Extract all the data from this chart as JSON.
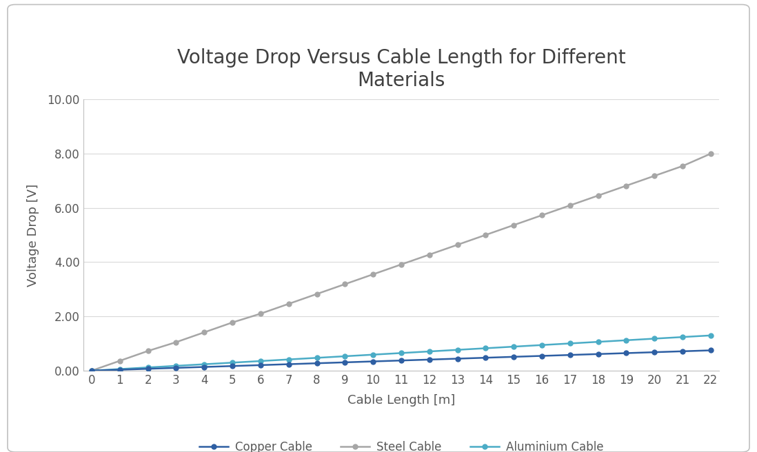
{
  "title": "Voltage Drop Versus Cable Length for Different\nMaterials",
  "xlabel": "Cable Length [m]",
  "ylabel": "Voltage Drop [V]",
  "x": [
    0,
    1,
    2,
    3,
    4,
    5,
    6,
    7,
    8,
    9,
    10,
    11,
    12,
    13,
    14,
    15,
    16,
    17,
    18,
    19,
    20,
    21,
    22
  ],
  "copper": [
    0.0,
    0.034,
    0.068,
    0.102,
    0.136,
    0.17,
    0.204,
    0.238,
    0.272,
    0.306,
    0.34,
    0.374,
    0.408,
    0.442,
    0.476,
    0.51,
    0.544,
    0.578,
    0.612,
    0.646,
    0.68,
    0.714,
    0.748
  ],
  "steel": [
    0.0,
    0.363,
    0.726,
    1.05,
    1.413,
    1.776,
    2.1,
    2.463,
    2.826,
    3.189,
    3.552,
    3.915,
    4.278,
    4.641,
    5.004,
    5.367,
    5.73,
    6.093,
    6.456,
    6.819,
    7.182,
    7.545,
    8.0
  ],
  "aluminium": [
    0.0,
    0.059,
    0.118,
    0.177,
    0.236,
    0.295,
    0.354,
    0.413,
    0.472,
    0.531,
    0.59,
    0.649,
    0.708,
    0.767,
    0.826,
    0.885,
    0.944,
    1.003,
    1.062,
    1.121,
    1.18,
    1.239,
    1.298
  ],
  "copper_color": "#2e5fa3",
  "steel_color": "#a6a6a6",
  "aluminium_color": "#4bacc6",
  "outer_bg": "#ffffff",
  "chart_bg": "#ffffff",
  "border_color": "#c0c0c0",
  "ylim": [
    0,
    10.0
  ],
  "yticks": [
    0.0,
    2.0,
    4.0,
    6.0,
    8.0,
    10.0
  ],
  "ytick_labels": [
    "0.00",
    "2.00",
    "4.00",
    "6.00",
    "8.00",
    "10.00"
  ],
  "grid_color": "#d9d9d9",
  "tick_color": "#595959",
  "title_fontsize": 20,
  "axis_label_fontsize": 13,
  "tick_fontsize": 12,
  "legend_fontsize": 12,
  "marker_size": 5,
  "line_width": 1.8
}
